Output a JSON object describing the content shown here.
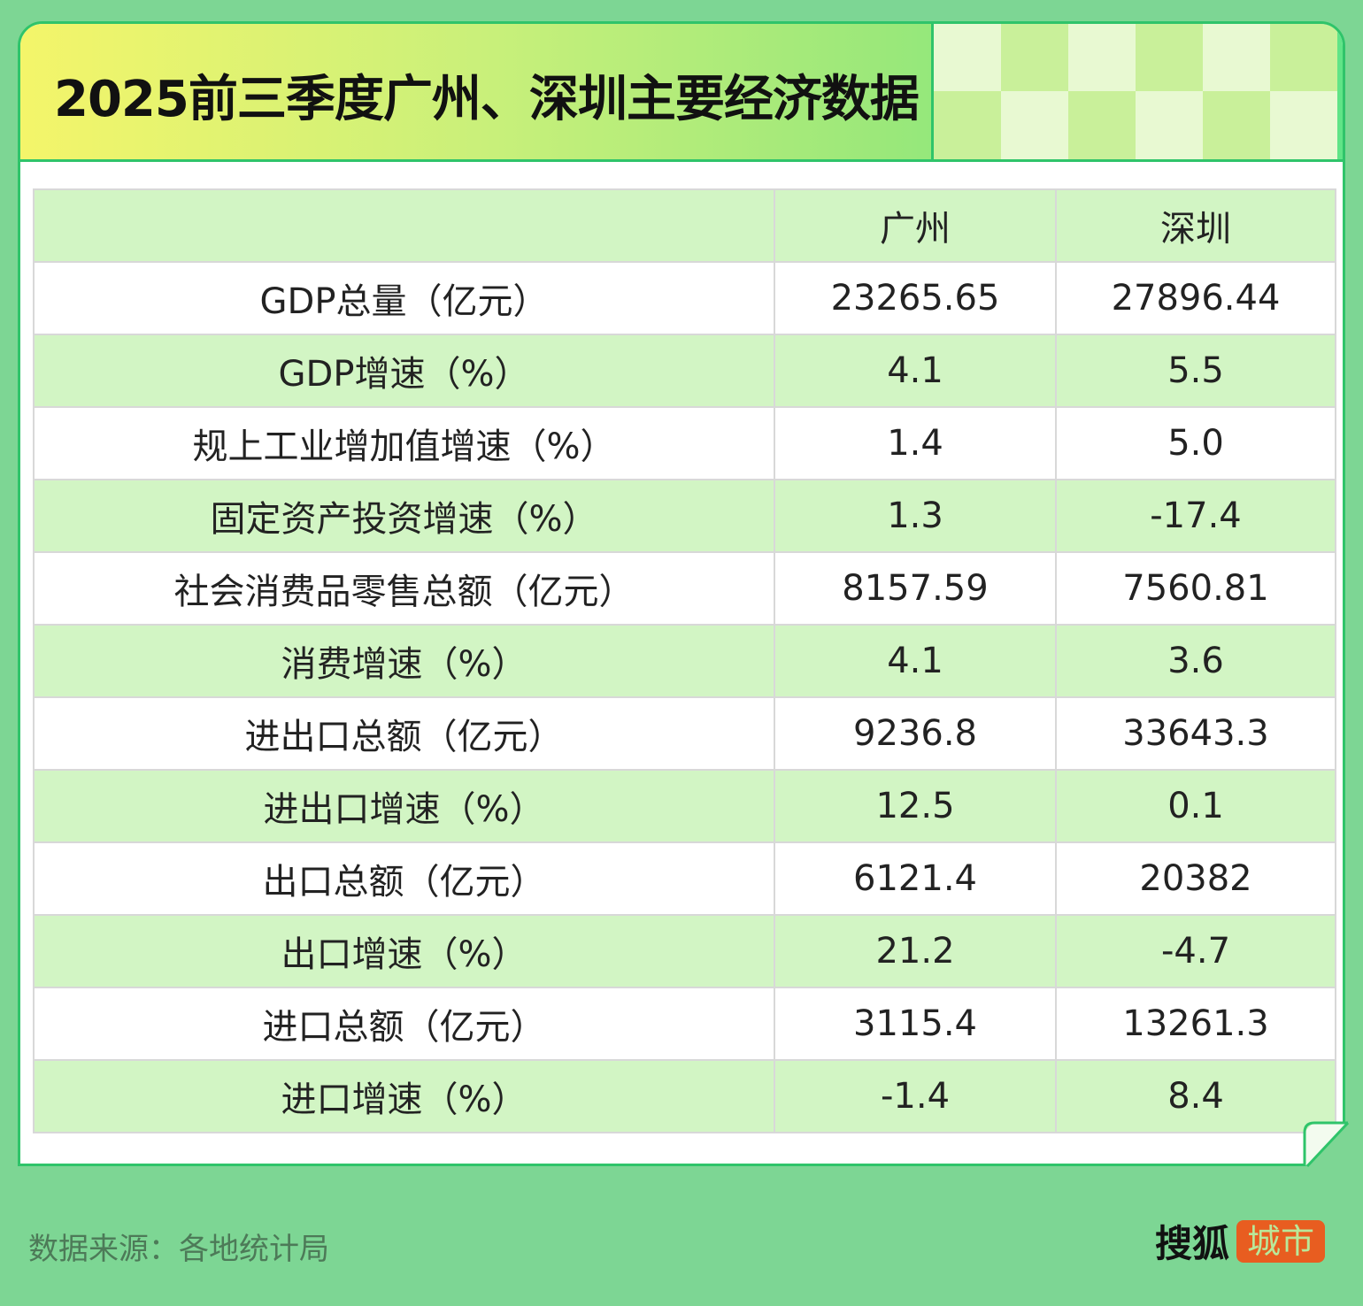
{
  "title": "2025前三季度广州、深圳主要经济数据",
  "table": {
    "headers": [
      "",
      "广州",
      "深圳"
    ],
    "rows": [
      [
        "GDP总量（亿元）",
        "23265.65",
        "27896.44"
      ],
      [
        "GDP增速（%）",
        "4.1",
        "5.5"
      ],
      [
        "规上工业增加值增速（%）",
        "1.4",
        "5.0"
      ],
      [
        "固定资产投资增速（%）",
        "1.3",
        "-17.4"
      ],
      [
        "社会消费品零售总额（亿元）",
        "8157.59",
        "7560.81"
      ],
      [
        "消费增速（%）",
        "4.1",
        "3.6"
      ],
      [
        "进出口总额（亿元）",
        "9236.8",
        "33643.3"
      ],
      [
        "进出口增速（%）",
        "12.5",
        "0.1"
      ],
      [
        "出口总额（亿元）",
        "6121.4",
        "20382"
      ],
      [
        "出口增速（%）",
        "21.2",
        "-4.7"
      ],
      [
        "进口总额（亿元）",
        "3115.4",
        "13261.3"
      ],
      [
        "进口增速（%）",
        "-1.4",
        "8.4"
      ]
    ]
  },
  "footer": {
    "source": "数据来源：各地统计局",
    "logo_main": "搜狐",
    "logo_tag": "城市"
  },
  "colors": {
    "background": "#7dd694",
    "border": "#2fc46a",
    "row_alt": "#d2f5c4",
    "logo_tag": "#e85d20"
  }
}
